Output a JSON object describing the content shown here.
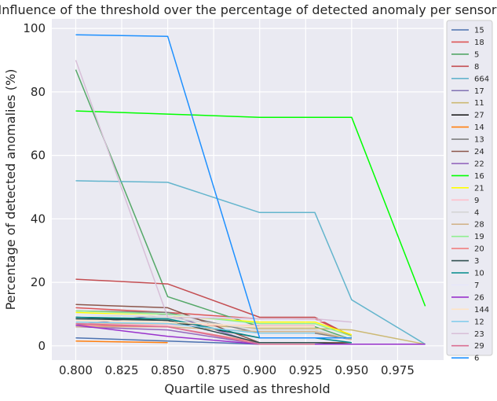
{
  "chart_data": {
    "type": "line",
    "title": "Influence of the threshold over the percentage of detected anomaly per sensor",
    "xlabel": "Quartile used as threshold",
    "ylabel": "Percentage of detected anomalies (%)",
    "xlim": [
      0.787,
      1.0
    ],
    "ylim": [
      -4.5,
      103
    ],
    "xticks": [
      0.8,
      0.825,
      0.85,
      0.875,
      0.9,
      0.925,
      0.95,
      0.975
    ],
    "xtick_labels": [
      "0.800",
      "0.825",
      "0.850",
      "0.875",
      "0.900",
      "0.925",
      "0.950",
      "0.975"
    ],
    "yticks": [
      0,
      20,
      40,
      60,
      80,
      100
    ],
    "ytick_labels": [
      "0",
      "20",
      "40",
      "60",
      "80",
      "100"
    ],
    "grid": true,
    "legend_position": "outside-right",
    "series": [
      {
        "name": "15",
        "color": "#4c72b0",
        "x": [
          0.8,
          0.85,
          0.9,
          0.93,
          0.95
        ],
        "y": [
          2.5,
          1.5,
          0.5,
          0.5,
          0.5
        ]
      },
      {
        "name": "18",
        "color": "#dd5555",
        "x": [
          0.8,
          0.85,
          0.9,
          0.93,
          0.95
        ],
        "y": [
          12,
          10.5,
          8.5,
          8.5,
          3
        ]
      },
      {
        "name": "5",
        "color": "#55a868",
        "x": [
          0.8,
          0.85,
          0.9,
          0.93,
          0.95
        ],
        "y": [
          87,
          15.5,
          6,
          6,
          2
        ]
      },
      {
        "name": "8",
        "color": "#c44e52",
        "x": [
          0.8,
          0.85,
          0.9,
          0.93,
          0.95
        ],
        "y": [
          21,
          19.5,
          9,
          9,
          3
        ]
      },
      {
        "name": "664",
        "color": "#64b5cd",
        "x": [
          0.8,
          0.85,
          0.9,
          0.93,
          0.95,
          0.99
        ],
        "y": [
          52,
          51.5,
          42,
          42,
          14.5,
          0.5
        ]
      },
      {
        "name": "17",
        "color": "#8172b3",
        "x": [
          0.8,
          0.85,
          0.9,
          0.93,
          0.95
        ],
        "y": [
          6.5,
          10,
          0.5,
          0.5,
          0.5
        ]
      },
      {
        "name": "11",
        "color": "#ccb974",
        "x": [
          0.8,
          0.85,
          0.9,
          0.93,
          0.95,
          0.99
        ],
        "y": [
          7,
          7,
          5.5,
          5.5,
          5,
          0.5
        ]
      },
      {
        "name": "27",
        "color": "#222222",
        "x": [
          0.8,
          0.85,
          0.9,
          0.93,
          0.95
        ],
        "y": [
          9,
          8,
          2.5,
          2.5,
          2.5
        ]
      },
      {
        "name": "14",
        "color": "#ff7f0e",
        "x": [
          0.8,
          0.85
        ],
        "y": [
          1.5,
          1
        ]
      },
      {
        "name": "13",
        "color": "#7f7f7f",
        "x": [
          0.8,
          0.85,
          0.9,
          0.93,
          0.95
        ],
        "y": [
          11,
          10.5,
          4,
          4,
          2
        ]
      },
      {
        "name": "24",
        "color": "#8c564b",
        "x": [
          0.8,
          0.85,
          0.9,
          0.93,
          0.95
        ],
        "y": [
          13,
          12,
          1,
          1,
          1
        ]
      },
      {
        "name": "22",
        "color": "#9467bd",
        "x": [
          0.8,
          0.85,
          0.9,
          0.93,
          0.95
        ],
        "y": [
          6,
          5,
          0.5,
          0.5,
          0.5
        ]
      },
      {
        "name": "16",
        "color": "#00ff00",
        "x": [
          0.8,
          0.85,
          0.9,
          0.95,
          0.99
        ],
        "y": [
          74,
          73,
          72,
          72,
          12.5
        ]
      },
      {
        "name": "21",
        "color": "#ffff00",
        "x": [
          0.8,
          0.85,
          0.9,
          0.93,
          0.95
        ],
        "y": [
          10.5,
          9.5,
          7.5,
          7.5,
          3.5
        ]
      },
      {
        "name": "9",
        "color": "#ffc0cb",
        "x": [
          0.8,
          0.85,
          0.9,
          0.93
        ],
        "y": [
          7,
          6.5,
          6.5,
          6.5
        ]
      },
      {
        "name": "4",
        "color": "#d3d3d3",
        "x": [
          0.8,
          0.85,
          0.9,
          0.93,
          0.95
        ],
        "y": [
          10,
          9,
          5,
          5,
          2
        ]
      },
      {
        "name": "28",
        "color": "#d2b48c",
        "x": [
          0.8,
          0.85,
          0.9,
          0.93,
          0.95
        ],
        "y": [
          6,
          6,
          4.5,
          4.5,
          2
        ]
      },
      {
        "name": "19",
        "color": "#90ee90",
        "x": [
          0.8,
          0.85,
          0.9,
          0.93,
          0.95
        ],
        "y": [
          11,
          10,
          7,
          7,
          3
        ]
      },
      {
        "name": "20",
        "color": "#f08080",
        "x": [
          0.8,
          0.85,
          0.9,
          0.93
        ],
        "y": [
          6.5,
          6,
          1,
          1
        ]
      },
      {
        "name": "3",
        "color": "#2f4f4f",
        "x": [
          0.8,
          0.85,
          0.9,
          0.93,
          0.95
        ],
        "y": [
          8.5,
          8,
          1,
          1,
          0.5
        ]
      },
      {
        "name": "10",
        "color": "#008b8b",
        "x": [
          0.8,
          0.85,
          0.9,
          0.93,
          0.95
        ],
        "y": [
          9,
          8.5,
          2.5,
          2.5,
          1
        ]
      },
      {
        "name": "7",
        "color": "#e6e6fa",
        "x": [
          0.8,
          0.85,
          0.9,
          0.95
        ],
        "y": [
          10,
          9.5,
          8.5,
          7.5
        ]
      },
      {
        "name": "26",
        "color": "#9932cc",
        "x": [
          0.8,
          0.85,
          0.9,
          0.95,
          0.99
        ],
        "y": [
          6.5,
          3,
          0.5,
          0.5,
          0.5
        ]
      },
      {
        "name": "144",
        "color": "#ffe4c4",
        "x": [
          0.8,
          0.85,
          0.9,
          0.93
        ],
        "y": [
          8,
          7.5,
          6,
          6
        ]
      },
      {
        "name": "12",
        "color": "#87ceeb",
        "x": [
          0.8,
          0.85,
          0.9,
          0.93
        ],
        "y": [
          7.5,
          7,
          4,
          4
        ]
      },
      {
        "name": "23",
        "color": "#d8bfd8",
        "x": [
          0.8,
          0.85,
          0.9,
          0.93,
          0.95
        ],
        "y": [
          90,
          9,
          8.5,
          8.5,
          7.5
        ]
      },
      {
        "name": "29",
        "color": "#db7093",
        "x": [
          0.8,
          0.85,
          0.9,
          0.93
        ],
        "y": [
          7,
          6,
          0.5,
          0.5
        ]
      },
      {
        "name": "6",
        "color": "#1e90ff",
        "x": [
          0.8,
          0.85,
          0.9,
          0.95
        ],
        "y": [
          98,
          97.5,
          2.5,
          2.5
        ]
      }
    ]
  }
}
